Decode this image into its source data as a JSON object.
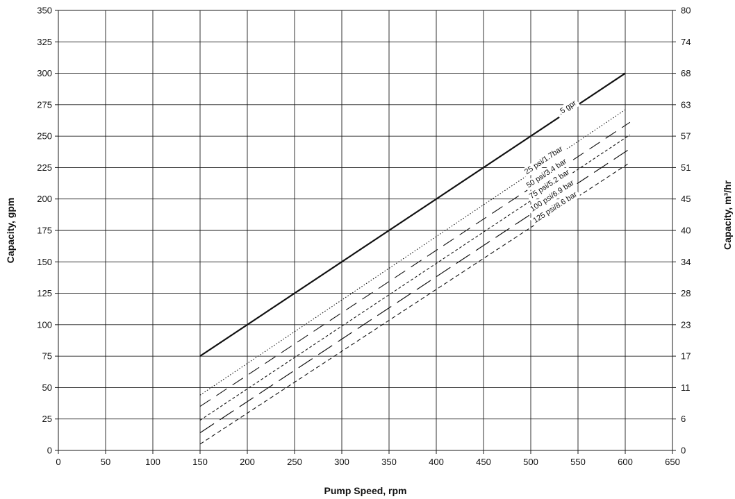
{
  "chart_data": {
    "type": "line",
    "xlabel": "Pump Speed, rpm",
    "ylabel": "Capacity, gpm",
    "ylabel_right": "Capacity, m³/hr",
    "xlim": [
      0,
      650
    ],
    "ylim": [
      0,
      350
    ],
    "x_ticks": [
      "0",
      "50",
      "100",
      "150",
      "200",
      "250",
      "300",
      "350",
      "400",
      "450",
      "500",
      "550",
      "600",
      "650"
    ],
    "y_ticks": [
      "0",
      "25",
      "50",
      "75",
      "100",
      "125",
      "150",
      "175",
      "200",
      "225",
      "250",
      "275",
      "300",
      "325",
      "350"
    ],
    "y_right_ticks": [
      "0",
      "6",
      "11",
      "17",
      "23",
      "28",
      "34",
      "40",
      "45",
      "51",
      "57",
      "63",
      "68",
      "74",
      "80"
    ],
    "grid": true,
    "series": [
      {
        "name": ".5 gpr",
        "x": [
          150,
          600
        ],
        "y": [
          75,
          300
        ],
        "dash": "solid",
        "width": 2.2
      },
      {
        "name": "25 psi/1.7bar",
        "x": [
          150,
          600
        ],
        "y": [
          44,
          271
        ],
        "dash": "1.5,2.5",
        "width": 1.1
      },
      {
        "name": "50 psi/3.4 bar",
        "x": [
          150,
          605
        ],
        "y": [
          35,
          261
        ],
        "dash": "18,10",
        "width": 1.1
      },
      {
        "name": "75 psi/5.2 bar",
        "x": [
          150,
          605
        ],
        "y": [
          24,
          251
        ],
        "dash": "4,3",
        "width": 1.1
      },
      {
        "name": "100 psi/6.9 bar",
        "x": [
          150,
          605
        ],
        "y": [
          14,
          240
        ],
        "dash": "24,10",
        "width": 1.2
      },
      {
        "name": "125 psi/8.6 bar",
        "x": [
          150,
          605
        ],
        "y": [
          5,
          229
        ],
        "dash": "6,4",
        "width": 1.1
      }
    ]
  }
}
